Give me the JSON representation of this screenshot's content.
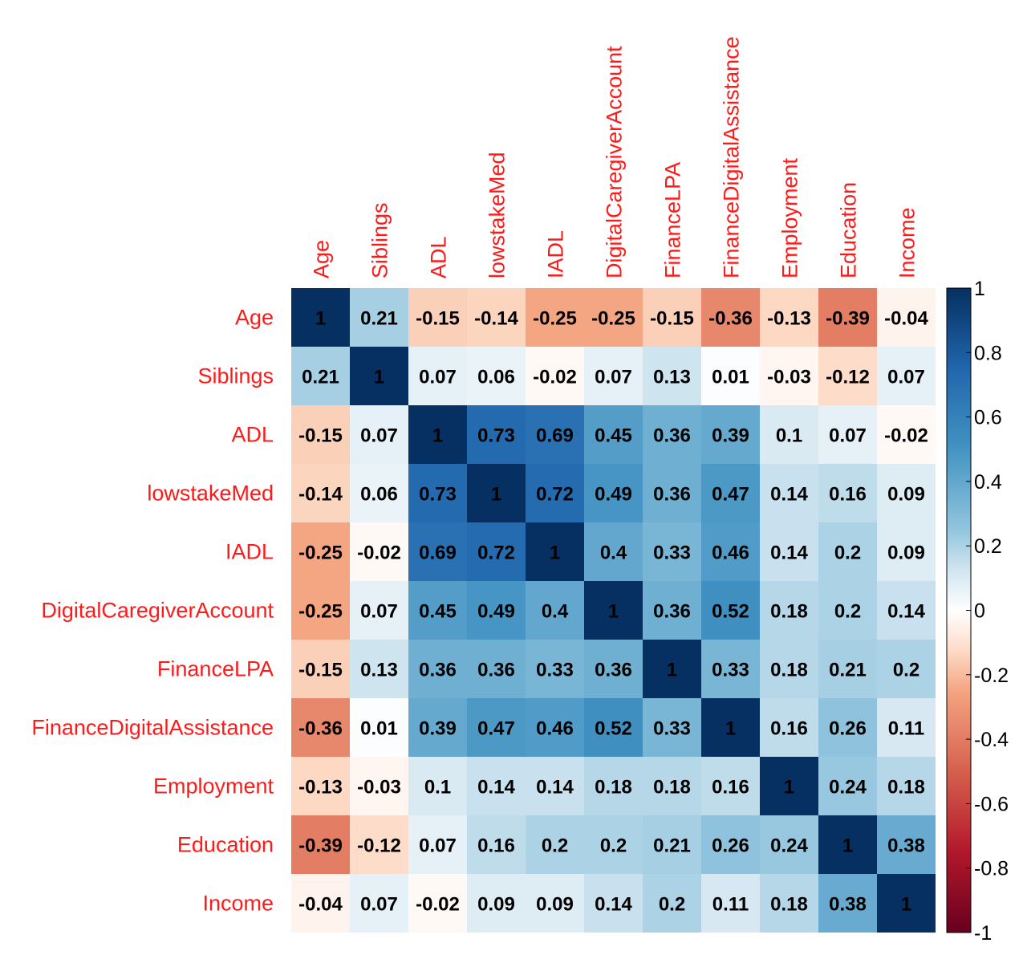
{
  "chart_data": {
    "type": "heatmap",
    "title": "",
    "variables": [
      "Age",
      "Siblings",
      "ADL",
      "lowstakeMed",
      "IADL",
      "DigitalCaregiverAccount",
      "FinanceLPA",
      "FinanceDigitalAssistance",
      "Employment",
      "Education",
      "Income"
    ],
    "matrix": [
      [
        1,
        0.21,
        -0.15,
        -0.14,
        -0.25,
        -0.25,
        -0.15,
        -0.36,
        -0.13,
        -0.39,
        -0.04
      ],
      [
        0.21,
        1,
        0.07,
        0.06,
        -0.02,
        0.07,
        0.13,
        0.01,
        -0.03,
        -0.12,
        0.07
      ],
      [
        -0.15,
        0.07,
        1,
        0.73,
        0.69,
        0.45,
        0.36,
        0.39,
        0.1,
        0.07,
        -0.02
      ],
      [
        -0.14,
        0.06,
        0.73,
        1,
        0.72,
        0.49,
        0.36,
        0.47,
        0.14,
        0.16,
        0.09
      ],
      [
        -0.25,
        -0.02,
        0.69,
        0.72,
        1,
        0.4,
        0.33,
        0.46,
        0.14,
        0.2,
        0.09
      ],
      [
        -0.25,
        0.07,
        0.45,
        0.49,
        0.4,
        1,
        0.36,
        0.52,
        0.18,
        0.2,
        0.14
      ],
      [
        -0.15,
        0.13,
        0.36,
        0.36,
        0.33,
        0.36,
        1,
        0.33,
        0.18,
        0.21,
        0.2
      ],
      [
        -0.36,
        0.01,
        0.39,
        0.47,
        0.46,
        0.52,
        0.33,
        1,
        0.16,
        0.26,
        0.11
      ],
      [
        -0.13,
        -0.03,
        0.1,
        0.14,
        0.14,
        0.18,
        0.18,
        0.16,
        1,
        0.24,
        0.18
      ],
      [
        -0.39,
        -0.12,
        0.07,
        0.16,
        0.2,
        0.2,
        0.21,
        0.26,
        0.24,
        1,
        0.38
      ],
      [
        -0.04,
        0.07,
        -0.02,
        0.09,
        0.09,
        0.14,
        0.2,
        0.11,
        0.18,
        0.38,
        1
      ]
    ],
    "color_scale": {
      "range": [
        -1,
        1
      ],
      "stops": [
        {
          "value": -1,
          "color": "#67001f"
        },
        {
          "value": -0.75,
          "color": "#b2182b"
        },
        {
          "value": -0.5,
          "color": "#d6604d"
        },
        {
          "value": -0.25,
          "color": "#f4a582"
        },
        {
          "value": -0.125,
          "color": "#fddbc7"
        },
        {
          "value": 0,
          "color": "#ffffff"
        },
        {
          "value": 0.125,
          "color": "#d1e5f0"
        },
        {
          "value": 0.25,
          "color": "#92c5de"
        },
        {
          "value": 0.5,
          "color": "#4393c3"
        },
        {
          "value": 0.75,
          "color": "#2166ac"
        },
        {
          "value": 1,
          "color": "#053061"
        }
      ],
      "ticks": [
        1,
        0.8,
        0.6,
        0.4,
        0.2,
        0,
        -0.2,
        -0.4,
        -0.6,
        -0.8,
        -1
      ],
      "tick_labels": [
        "1",
        "0.8",
        "0.6",
        "0.4",
        "0.2",
        "0",
        "-0.2",
        "-0.4",
        "-0.6",
        "-0.8",
        "-1"
      ]
    },
    "label_color": "#ff1a1a",
    "value_text_color": "#000000",
    "legend_placement": "right",
    "grid": false
  }
}
